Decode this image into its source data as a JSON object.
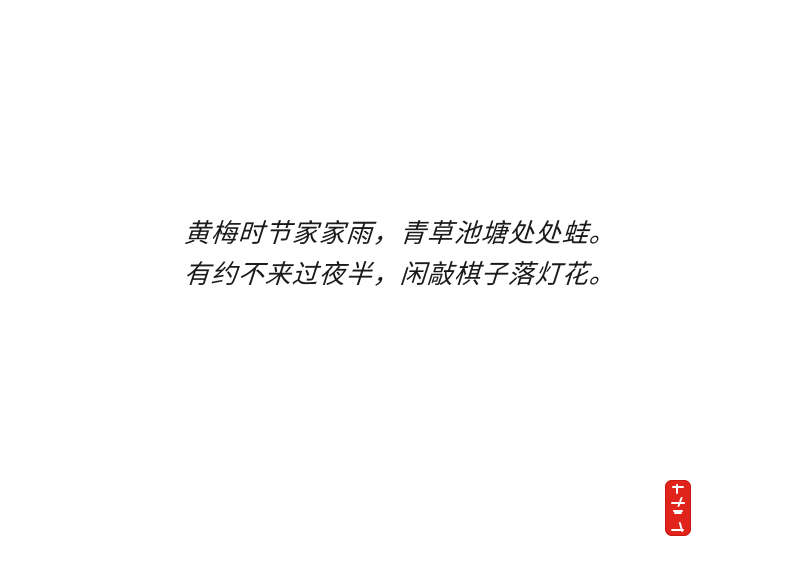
{
  "poem": {
    "lines": [
      "黄梅时节家家雨，青草池塘处处蛙。",
      "有约不来过夜半，闲敲棋子落灯花。"
    ]
  },
  "seal": {
    "text": "逐浪字库",
    "color": "#e0241b"
  }
}
